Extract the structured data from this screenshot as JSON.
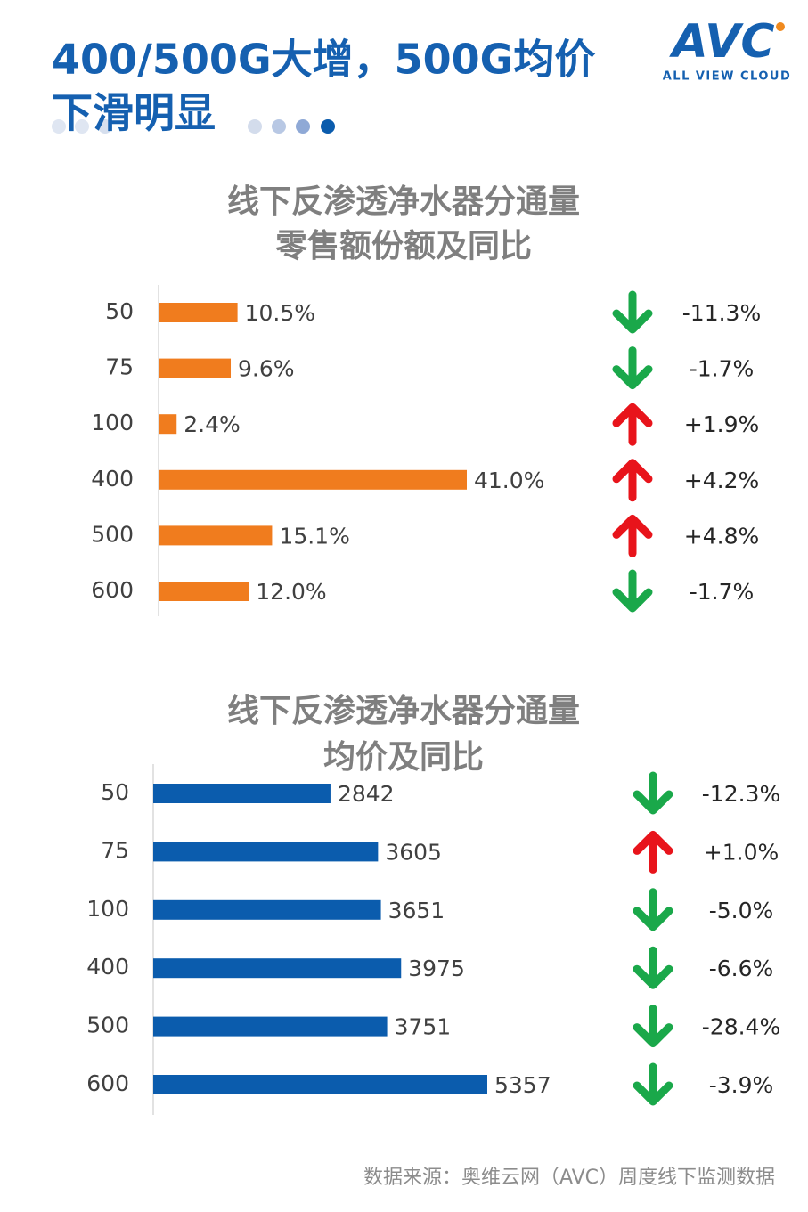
{
  "header": {
    "title_lines": [
      "400/500G大增，500G均价",
      "下滑明显"
    ],
    "logo": "AVC",
    "logo_sub": "ALL VIEW CLOUD"
  },
  "chart_data": [
    {
      "type": "bar",
      "title": "线下反渗透净水器分通量",
      "subtitle": "零售额份额及同比",
      "categories": [
        "50",
        "75",
        "100",
        "400",
        "500",
        "600"
      ],
      "values": [
        10.5,
        9.6,
        2.4,
        41.0,
        15.1,
        12.0
      ],
      "value_labels": [
        "10.5%",
        "9.6%",
        "2.4%",
        "41.0%",
        "15.1%",
        "12.0%"
      ],
      "color": "#f07c1e",
      "changes": [
        -11.3,
        -1.7,
        1.9,
        4.2,
        4.8,
        -1.7
      ],
      "change_labels": [
        "-11.3%",
        "-1.7%",
        "+1.9%",
        "+4.2%",
        "+4.8%",
        "-1.7%"
      ]
    },
    {
      "type": "bar",
      "title": "线下反渗透净水器分通量",
      "subtitle": "均价及同比",
      "categories": [
        "50",
        "75",
        "100",
        "400",
        "500",
        "600"
      ],
      "values": [
        2842,
        3605,
        3651,
        3975,
        3751,
        5357
      ],
      "color": "#0b5cad",
      "changes": [
        -12.3,
        1.0,
        -5.0,
        -6.6,
        -28.4,
        -3.9
      ],
      "change_labels": [
        "-12.3%",
        "+1.0%",
        "-5.0%",
        "-6.6%",
        "-28.4%",
        "-3.9%"
      ]
    }
  ],
  "source": "数据来源：奥维云网（AVC）周度线下监测数据"
}
